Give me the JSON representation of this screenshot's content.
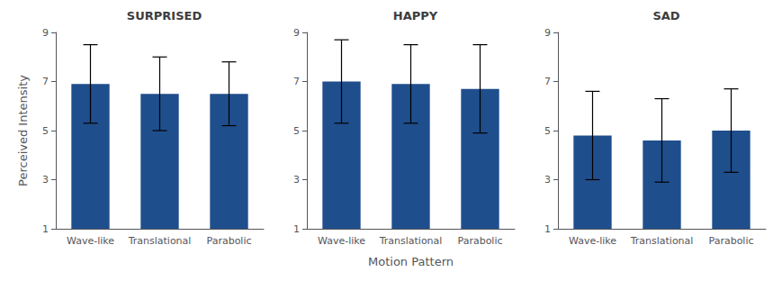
{
  "chart_data": [
    {
      "type": "bar",
      "title": "SURPRISED",
      "categories": [
        "Wave-like",
        "Translational",
        "Parabolic"
      ],
      "values": [
        6.9,
        6.5,
        6.5
      ],
      "errors": [
        1.6,
        1.5,
        1.3
      ],
      "color": "#1F4E8C",
      "ylabel": "Perceived Intensity",
      "ylim": [
        1,
        9
      ],
      "yticks": [
        1,
        3,
        5,
        7,
        9
      ],
      "grid": false
    },
    {
      "type": "bar",
      "title": "HAPPY",
      "categories": [
        "Wave-like",
        "Translational",
        "Parabolic"
      ],
      "values": [
        7.0,
        6.9,
        6.7
      ],
      "errors": [
        1.7,
        1.6,
        1.8
      ],
      "color": "#1F4E8C",
      "xlabel": "Motion Pattern",
      "ylim": [
        1,
        9
      ],
      "yticks": [
        1,
        3,
        5,
        7,
        9
      ],
      "grid": false
    },
    {
      "type": "bar",
      "title": "SAD",
      "categories": [
        "Wave-like",
        "Translational",
        "Parabolic"
      ],
      "values": [
        4.8,
        4.6,
        5.0
      ],
      "errors": [
        1.8,
        1.7,
        1.7
      ],
      "color": "#1F4E8C",
      "ylim": [
        1,
        9
      ],
      "yticks": [
        1,
        3,
        5,
        7,
        9
      ],
      "grid": false
    }
  ]
}
